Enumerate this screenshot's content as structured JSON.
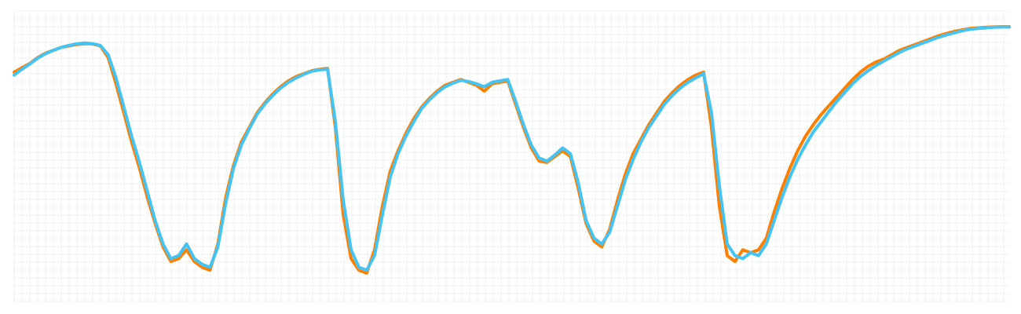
{
  "chart_data": {
    "type": "line",
    "grid": true,
    "legend": "none",
    "xlim": [
      0,
      127
    ],
    "ylim": [
      0,
      100
    ],
    "series": [
      {
        "color": "#ff8000",
        "values": [
          [
            0,
            79
          ],
          [
            1,
            80.5
          ],
          [
            2,
            82
          ],
          [
            3,
            84
          ],
          [
            4,
            85.5
          ],
          [
            5,
            86.5
          ],
          [
            6,
            87.5
          ],
          [
            7,
            88
          ],
          [
            8,
            88.5
          ],
          [
            9,
            88.8
          ],
          [
            10,
            88.7
          ],
          [
            11,
            88
          ],
          [
            12,
            84
          ],
          [
            13,
            75
          ],
          [
            14,
            65
          ],
          [
            15,
            55
          ],
          [
            16,
            46
          ],
          [
            17,
            36
          ],
          [
            18,
            27
          ],
          [
            19,
            19
          ],
          [
            20,
            14
          ],
          [
            21,
            15
          ],
          [
            22,
            18
          ],
          [
            23,
            14
          ],
          [
            24,
            12
          ],
          [
            25,
            11
          ],
          [
            26,
            20
          ],
          [
            27,
            36
          ],
          [
            28,
            47
          ],
          [
            29,
            55
          ],
          [
            30,
            60
          ],
          [
            31,
            65
          ],
          [
            32,
            68.5
          ],
          [
            33,
            71.5
          ],
          [
            34,
            74
          ],
          [
            35,
            76
          ],
          [
            36,
            77.5
          ],
          [
            37,
            78.5
          ],
          [
            38,
            79.5
          ],
          [
            39,
            80
          ],
          [
            40,
            80.3
          ],
          [
            41,
            60
          ],
          [
            42,
            30
          ],
          [
            43,
            15
          ],
          [
            44,
            11
          ],
          [
            45,
            10
          ],
          [
            46,
            18
          ],
          [
            47,
            33
          ],
          [
            48,
            45
          ],
          [
            49,
            52
          ],
          [
            50,
            58
          ],
          [
            51,
            63
          ],
          [
            52,
            67
          ],
          [
            53,
            70
          ],
          [
            54,
            72.5
          ],
          [
            55,
            74.5
          ],
          [
            56,
            75.5
          ],
          [
            57,
            76.5
          ],
          [
            58,
            75.5
          ],
          [
            59,
            74.5
          ],
          [
            60,
            72.5
          ],
          [
            61,
            75
          ],
          [
            62,
            75.5
          ],
          [
            63,
            76
          ],
          [
            64,
            68
          ],
          [
            65,
            60
          ],
          [
            66,
            53
          ],
          [
            67,
            48.5
          ],
          [
            68,
            48
          ],
          [
            69,
            50
          ],
          [
            70,
            52
          ],
          [
            71,
            50
          ],
          [
            72,
            39
          ],
          [
            73,
            27
          ],
          [
            74,
            21
          ],
          [
            75,
            19
          ],
          [
            76,
            25
          ],
          [
            77,
            35
          ],
          [
            78,
            44
          ],
          [
            79,
            51
          ],
          [
            80,
            56
          ],
          [
            81,
            61
          ],
          [
            82,
            65
          ],
          [
            83,
            69
          ],
          [
            84,
            72
          ],
          [
            85,
            74.5
          ],
          [
            86,
            76.5
          ],
          [
            87,
            78
          ],
          [
            88,
            79
          ],
          [
            89,
            60
          ],
          [
            90,
            33
          ],
          [
            91,
            16
          ],
          [
            92,
            14
          ],
          [
            93,
            18
          ],
          [
            94,
            17
          ],
          [
            95,
            18
          ],
          [
            96,
            22
          ],
          [
            97,
            31
          ],
          [
            98,
            39
          ],
          [
            99,
            46
          ],
          [
            100,
            52
          ],
          [
            101,
            57
          ],
          [
            102,
            61
          ],
          [
            103,
            64.5
          ],
          [
            104,
            67.5
          ],
          [
            105,
            70.5
          ],
          [
            106,
            73.5
          ],
          [
            107,
            76.5
          ],
          [
            108,
            79
          ],
          [
            109,
            81
          ],
          [
            110,
            82.5
          ],
          [
            111,
            83.5
          ],
          [
            112,
            85
          ],
          [
            113,
            86.5
          ],
          [
            114,
            87.5
          ],
          [
            115,
            88.5
          ],
          [
            116,
            89.5
          ],
          [
            117,
            90.5
          ],
          [
            118,
            91.5
          ],
          [
            119,
            92.3
          ],
          [
            120,
            93
          ],
          [
            121,
            93.5
          ],
          [
            122,
            94
          ],
          [
            123,
            94.2
          ],
          [
            124,
            94.4
          ],
          [
            125,
            94.5
          ],
          [
            126,
            94.6
          ],
          [
            127,
            94.6
          ]
        ]
      },
      {
        "color": "#45c3f2",
        "values": [
          [
            0,
            78
          ],
          [
            1,
            80
          ],
          [
            2,
            81.8
          ],
          [
            3,
            83.8
          ],
          [
            4,
            85.3
          ],
          [
            5,
            86.5
          ],
          [
            6,
            87.5
          ],
          [
            7,
            88.2
          ],
          [
            8,
            88.7
          ],
          [
            9,
            89
          ],
          [
            10,
            88.8
          ],
          [
            11,
            88.2
          ],
          [
            12,
            85
          ],
          [
            13,
            77
          ],
          [
            14,
            67
          ],
          [
            15,
            57
          ],
          [
            16,
            48
          ],
          [
            17,
            38
          ],
          [
            18,
            28
          ],
          [
            19,
            20
          ],
          [
            20,
            15
          ],
          [
            21,
            16
          ],
          [
            22,
            20
          ],
          [
            23,
            15
          ],
          [
            24,
            13
          ],
          [
            25,
            12
          ],
          [
            26,
            19
          ],
          [
            27,
            34
          ],
          [
            28,
            46
          ],
          [
            29,
            54
          ],
          [
            30,
            59.5
          ],
          [
            31,
            64.5
          ],
          [
            32,
            68
          ],
          [
            33,
            71
          ],
          [
            34,
            73.5
          ],
          [
            35,
            75.5
          ],
          [
            36,
            77
          ],
          [
            37,
            78.3
          ],
          [
            38,
            79.3
          ],
          [
            39,
            79.8
          ],
          [
            40,
            80
          ],
          [
            41,
            62
          ],
          [
            42,
            35
          ],
          [
            43,
            18
          ],
          [
            44,
            12
          ],
          [
            45,
            11
          ],
          [
            46,
            16
          ],
          [
            47,
            30
          ],
          [
            48,
            43
          ],
          [
            49,
            51
          ],
          [
            50,
            57
          ],
          [
            51,
            62
          ],
          [
            52,
            66.5
          ],
          [
            53,
            69.5
          ],
          [
            54,
            72
          ],
          [
            55,
            74
          ],
          [
            56,
            75.2
          ],
          [
            57,
            76.2
          ],
          [
            58,
            75.8
          ],
          [
            59,
            75
          ],
          [
            60,
            74
          ],
          [
            61,
            75.5
          ],
          [
            62,
            76
          ],
          [
            63,
            76.5
          ],
          [
            64,
            69
          ],
          [
            65,
            61
          ],
          [
            66,
            54
          ],
          [
            67,
            49.5
          ],
          [
            68,
            48.5
          ],
          [
            69,
            50.5
          ],
          [
            70,
            53
          ],
          [
            71,
            51
          ],
          [
            72,
            41
          ],
          [
            73,
            28
          ],
          [
            74,
            22
          ],
          [
            75,
            20
          ],
          [
            76,
            24
          ],
          [
            77,
            33
          ],
          [
            78,
            42
          ],
          [
            79,
            49
          ],
          [
            80,
            55
          ],
          [
            81,
            60
          ],
          [
            82,
            64
          ],
          [
            83,
            68
          ],
          [
            84,
            71
          ],
          [
            85,
            73.5
          ],
          [
            86,
            75.5
          ],
          [
            87,
            77
          ],
          [
            88,
            78.5
          ],
          [
            89,
            65
          ],
          [
            90,
            40
          ],
          [
            91,
            20
          ],
          [
            92,
            16
          ],
          [
            93,
            15
          ],
          [
            94,
            17
          ],
          [
            95,
            16
          ],
          [
            96,
            20
          ],
          [
            97,
            28
          ],
          [
            98,
            36
          ],
          [
            99,
            43
          ],
          [
            100,
            49
          ],
          [
            101,
            54
          ],
          [
            102,
            58.5
          ],
          [
            103,
            62
          ],
          [
            104,
            65.5
          ],
          [
            105,
            69
          ],
          [
            106,
            72
          ],
          [
            107,
            75
          ],
          [
            108,
            77.5
          ],
          [
            109,
            79.5
          ],
          [
            110,
            81.3
          ],
          [
            111,
            82.8
          ],
          [
            112,
            84.3
          ],
          [
            113,
            85.8
          ],
          [
            114,
            87
          ],
          [
            115,
            88
          ],
          [
            116,
            89
          ],
          [
            117,
            90
          ],
          [
            118,
            91
          ],
          [
            119,
            91.8
          ],
          [
            120,
            92.5
          ],
          [
            121,
            93.2
          ],
          [
            122,
            93.7
          ],
          [
            123,
            94
          ],
          [
            124,
            94.2
          ],
          [
            125,
            94.4
          ],
          [
            126,
            94.5
          ],
          [
            127,
            94.5
          ]
        ]
      }
    ]
  }
}
